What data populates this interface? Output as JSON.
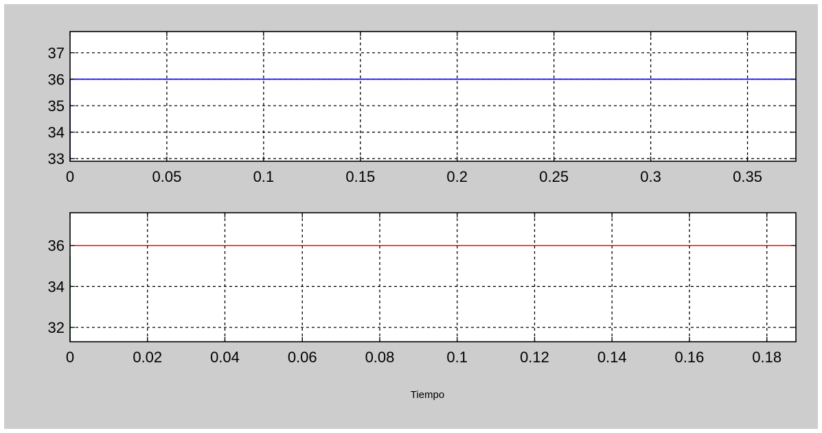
{
  "colors": {
    "figure_background": "#cdcdcd",
    "axes_background": "#ffffff",
    "grid": "#000000",
    "axes_frame": "#000000"
  },
  "chart_data": [
    {
      "type": "line",
      "title": "",
      "xlabel": "",
      "ylabel": "",
      "xlim": [
        0,
        0.375
      ],
      "ylim": [
        32.9,
        37.8
      ],
      "x_ticks": [
        0,
        0.05,
        0.1,
        0.15,
        0.2,
        0.25,
        0.3,
        0.35
      ],
      "x_tick_labels": [
        "0",
        "0.05",
        "0.1",
        "0.15",
        "0.2",
        "0.25",
        "0.3",
        "0.35"
      ],
      "y_ticks": [
        33,
        34,
        35,
        36,
        37
      ],
      "y_tick_labels": [
        "33",
        "34",
        "35",
        "36",
        "37"
      ],
      "grid": true,
      "series": [
        {
          "color": "#0000ff",
          "x": [
            0,
            0,
            0.375
          ],
          "y": [
            32.9,
            36,
            36
          ]
        }
      ]
    },
    {
      "type": "line",
      "title": "",
      "xlabel": "Tiempo",
      "ylabel": "",
      "xlim": [
        0,
        0.1875
      ],
      "ylim": [
        31.3,
        37.6
      ],
      "x_ticks": [
        0,
        0.02,
        0.04,
        0.06,
        0.08,
        0.1,
        0.12,
        0.14,
        0.16,
        0.18
      ],
      "x_tick_labels": [
        "0",
        "0.02",
        "0.04",
        "0.06",
        "0.08",
        "0.1",
        "0.12",
        "0.14",
        "0.16",
        "0.18"
      ],
      "y_ticks": [
        32,
        34,
        36
      ],
      "y_tick_labels": [
        "32",
        "34",
        "36"
      ],
      "grid": true,
      "series": [
        {
          "color": "#008000",
          "x": [
            0,
            0
          ],
          "y": [
            31.3,
            35.5
          ]
        },
        {
          "color": "#ff0000",
          "x": [
            0,
            0.1875
          ],
          "y": [
            36,
            36
          ]
        }
      ]
    }
  ]
}
